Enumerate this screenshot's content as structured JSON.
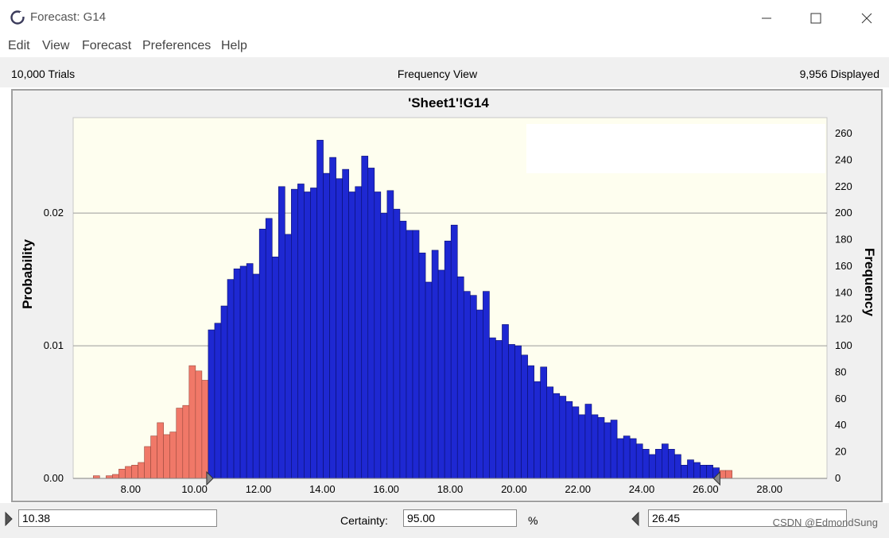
{
  "window": {
    "title": "Forecast: G14"
  },
  "menu": [
    "Edit",
    "View",
    "Forecast",
    "Preferences",
    "Help"
  ],
  "info": {
    "trials": "10,000 Trials",
    "view": "Frequency View",
    "displayed": "9,956 Displayed"
  },
  "chart_data": {
    "type": "bar",
    "title": "'Sheet1'!G14",
    "ylabel_left": "Probability",
    "ylabel_right": "Frequency",
    "xlabel": "",
    "x_ticks": [
      "8.00",
      "10.00",
      "12.00",
      "14.00",
      "16.00",
      "18.00",
      "20.00",
      "22.00",
      "24.00",
      "26.00",
      "28.00"
    ],
    "x_tick_values": [
      8,
      10,
      12,
      14,
      16,
      18,
      20,
      22,
      24,
      26,
      28
    ],
    "y_left_ticks": [
      "0.00",
      "0.01",
      "0.02"
    ],
    "y_left_tick_values": [
      0,
      100,
      200
    ],
    "y_right_ticks": [
      "0",
      "20",
      "40",
      "60",
      "80",
      "100",
      "120",
      "140",
      "160",
      "180",
      "200",
      "220",
      "240",
      "260"
    ],
    "y_right_tick_values": [
      0,
      20,
      40,
      60,
      80,
      100,
      120,
      140,
      160,
      180,
      200,
      220,
      240,
      260
    ],
    "xlim": [
      6.2,
      29.8
    ],
    "ylim": [
      0,
      272
    ],
    "bin_start": 6.83,
    "bin_width": 0.2,
    "frequencies": [
      2,
      0,
      2,
      3,
      7,
      9,
      10,
      12,
      24,
      32,
      42,
      33,
      35,
      53,
      55,
      85,
      81,
      74,
      112,
      117,
      130,
      150,
      158,
      160,
      162,
      154,
      188,
      196,
      167,
      220,
      184,
      218,
      222,
      216,
      219,
      255,
      230,
      242,
      226,
      233,
      216,
      220,
      243,
      234,
      216,
      200,
      217,
      203,
      194,
      187,
      187,
      170,
      148,
      172,
      157,
      179,
      191,
      152,
      141,
      138,
      127,
      141,
      106,
      104,
      116,
      101,
      100,
      93,
      85,
      73,
      84,
      69,
      64,
      62,
      58,
      54,
      48,
      56,
      48,
      46,
      42,
      44,
      30,
      32,
      30,
      26,
      22,
      18,
      22,
      26,
      22,
      18,
      10,
      14,
      12,
      10,
      10,
      8,
      6,
      6
    ],
    "certainty_range": [
      10.38,
      26.45
    ],
    "in_range_color": "#1e28d2",
    "out_range_color": "#f07868",
    "grid": true,
    "plot_background": "#fefeef"
  },
  "controls": {
    "lower": "10.38",
    "certainty_label": "Certainty:",
    "certainty": "95.00",
    "pct": "%",
    "upper": "26.45"
  },
  "watermark": "CSDN @EdmondSung"
}
